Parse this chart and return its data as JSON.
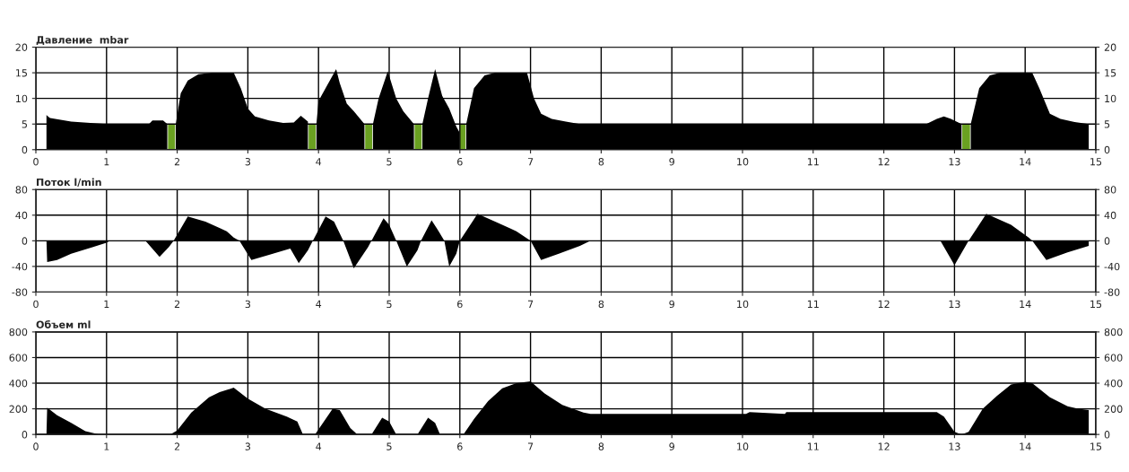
{
  "chart_data": [
    {
      "type": "area",
      "title": "Давление  mbar",
      "xlim": [
        0,
        15
      ],
      "xticks": [
        0,
        1,
        2,
        3,
        4,
        5,
        6,
        7,
        8,
        9,
        10,
        11,
        12,
        13,
        14,
        15
      ],
      "ylim": [
        0,
        20
      ],
      "yticks": [
        0,
        5,
        10,
        15,
        20
      ],
      "y2lim": [
        0,
        20
      ],
      "y2ticks": [
        0,
        5,
        10,
        15,
        20
      ],
      "grid": true,
      "series": [
        {
          "color": "#000000",
          "x": [
            0.15,
            0.16,
            0.2,
            0.5,
            1.0,
            1.6,
            1.65,
            1.8,
            1.86,
            1.87,
            1.97,
            1.98,
            2.05,
            2.15,
            2.3,
            2.5,
            2.8,
            2.9,
            3.0,
            3.1,
            3.3,
            3.5,
            3.65,
            3.75,
            3.85,
            3.86,
            3.96,
            3.97,
            4.0,
            4.1,
            4.25,
            4.3,
            4.4,
            4.5,
            4.65,
            4.66,
            4.76,
            4.77,
            4.85,
            4.98,
            5.1,
            5.2,
            5.35,
            5.36,
            5.46,
            5.47,
            5.55,
            5.65,
            5.75,
            5.85,
            5.95,
            5.99,
            6.0,
            6.08,
            6.09,
            6.2,
            6.35,
            6.5,
            6.95,
            7.05,
            7.15,
            7.3,
            7.5,
            7.7,
            12.6,
            12.75,
            12.85,
            12.95,
            13.1,
            13.11,
            13.22,
            13.23,
            13.35,
            13.5,
            13.65,
            14.1,
            14.2,
            14.35,
            14.5,
            14.7,
            14.9
          ],
          "values": [
            6.8,
            6.6,
            6.2,
            5.5,
            5,
            5,
            5.7,
            5.7,
            5,
            null,
            null,
            5,
            11,
            13.5,
            14.7,
            15,
            15,
            12,
            8,
            6.5,
            5.7,
            5.2,
            5.3,
            6.6,
            5.5,
            null,
            null,
            5,
            9.5,
            12,
            15.7,
            13,
            9,
            7.5,
            5,
            null,
            null,
            5,
            10,
            15.3,
            10,
            7.5,
            5,
            null,
            null,
            5,
            10,
            15.7,
            10.5,
            8,
            4.5,
            3.5,
            null,
            null,
            5,
            12,
            14.5,
            15,
            15,
            10,
            7,
            6,
            5.5,
            5,
            5,
            6,
            6.5,
            6,
            5,
            null,
            null,
            5,
            12,
            14.5,
            15,
            15,
            12,
            7,
            6,
            5.4,
            5
          ]
        },
        {
          "color": "#6aa121",
          "x": [
            1.87,
            1.97,
            1.98,
            3.86,
            3.96,
            3.97,
            4.66,
            4.76,
            4.77,
            5.36,
            5.46,
            5.47,
            6.0,
            6.08,
            6.09,
            13.11,
            13.22
          ],
          "values": [
            5,
            5,
            null,
            5,
            5,
            null,
            5,
            5,
            null,
            5,
            5,
            null,
            5,
            5,
            null,
            5,
            5
          ]
        }
      ]
    },
    {
      "type": "area",
      "title": "Поток l/min",
      "xlim": [
        0,
        15
      ],
      "xticks": [
        0,
        1,
        2,
        3,
        4,
        5,
        6,
        7,
        8,
        9,
        10,
        11,
        12,
        13,
        14,
        15
      ],
      "ylim": [
        -80,
        80
      ],
      "yticks": [
        -80,
        -40,
        0,
        40,
        80
      ],
      "y2lim": [
        -80,
        80
      ],
      "y2ticks": [
        -80,
        -40,
        0,
        40,
        80
      ],
      "grid": true,
      "series": [
        {
          "color": "#000000",
          "x": [
            0.15,
            0.16,
            0.3,
            0.5,
            0.8,
            1.0,
            1.05,
            1.55,
            1.75,
            1.88,
            1.95,
            2.15,
            2.4,
            2.7,
            2.8,
            2.88,
            3.05,
            3.3,
            3.6,
            3.72,
            3.85,
            3.92,
            4.1,
            4.22,
            4.35,
            4.5,
            4.7,
            4.75,
            4.92,
            5.0,
            5.1,
            5.25,
            5.4,
            5.45,
            5.6,
            5.7,
            5.78,
            5.85,
            5.95,
            6.0,
            6.25,
            6.5,
            6.8,
            7.0,
            7.15,
            7.4,
            7.7,
            7.85,
            12.8,
            13.0,
            13.2,
            13.45,
            13.8,
            14.05,
            14.1,
            14.3,
            14.6,
            14.9
          ],
          "values": [
            0,
            -33,
            -30,
            -20,
            -10,
            -3,
            0,
            0,
            -25,
            -10,
            0,
            38,
            30,
            15,
            5,
            0,
            -30,
            -22,
            -12,
            -35,
            -15,
            0,
            38,
            30,
            0,
            -43,
            -10,
            0,
            35,
            25,
            0,
            -40,
            -15,
            0,
            32,
            15,
            0,
            -40,
            -20,
            0,
            42,
            30,
            15,
            0,
            -30,
            -20,
            -8,
            0,
            0,
            -38,
            0,
            42,
            25,
            5,
            0,
            -30,
            -18,
            -8
          ]
        }
      ]
    },
    {
      "type": "area",
      "title": "Объем ml",
      "xlim": [
        0,
        15
      ],
      "xticks": [
        0,
        1,
        2,
        3,
        4,
        5,
        6,
        7,
        8,
        9,
        10,
        11,
        12,
        13,
        14,
        15
      ],
      "ylim": [
        0,
        800
      ],
      "yticks": [
        0,
        200,
        400,
        600,
        800
      ],
      "y2lim": [
        0,
        800
      ],
      "y2ticks": [
        0,
        200,
        400,
        600,
        800
      ],
      "grid": true,
      "series": [
        {
          "color": "#000000",
          "x": [
            0.15,
            0.16,
            0.3,
            0.5,
            0.7,
            0.9,
            1.9,
            2.0,
            2.2,
            2.45,
            2.6,
            2.8,
            3.0,
            3.25,
            3.55,
            3.7,
            3.78,
            3.95,
            4.05,
            4.2,
            4.3,
            4.45,
            4.55,
            4.75,
            4.9,
            5.0,
            5.1,
            5.4,
            5.55,
            5.65,
            5.72,
            6.05,
            6.2,
            6.4,
            6.6,
            6.8,
            7.0,
            7.2,
            7.45,
            7.75,
            7.85,
            10.05,
            10.1,
            10.6,
            10.62,
            12.75,
            12.85,
            13.0,
            13.1,
            13.2,
            13.4,
            13.6,
            13.8,
            14.0,
            14.1,
            14.35,
            14.6,
            14.75,
            14.9
          ],
          "values": [
            0,
            210,
            150,
            90,
            25,
            0,
            0,
            30,
            170,
            290,
            330,
            365,
            280,
            200,
            140,
            100,
            0,
            0,
            80,
            200,
            190,
            50,
            0,
            0,
            130,
            100,
            0,
            0,
            130,
            90,
            0,
            0,
            120,
            260,
            360,
            400,
            415,
            320,
            230,
            170,
            160,
            160,
            175,
            160,
            175,
            175,
            140,
            20,
            0,
            20,
            200,
            300,
            390,
            410,
            400,
            290,
            220,
            200,
            190
          ]
        }
      ]
    }
  ]
}
